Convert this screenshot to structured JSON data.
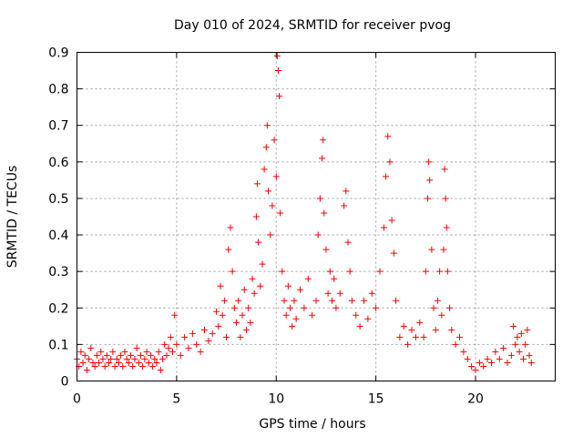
{
  "chart_data": {
    "type": "scatter",
    "title": "Day 010 of 2024, SRMTID for receiver pvog",
    "xlabel": "GPS time / hours",
    "ylabel": "SRMTID / TECUs",
    "xlim": [
      0,
      24
    ],
    "ylim": [
      0,
      0.9
    ],
    "xticks": [
      0,
      5,
      10,
      15,
      20
    ],
    "xtick_labels": [
      "0",
      "5",
      "10",
      "15",
      "20"
    ],
    "yticks": [
      0,
      0.1,
      0.2,
      0.3,
      0.4,
      0.5,
      0.6,
      0.7,
      0.8,
      0.9
    ],
    "ytick_labels": [
      "0",
      "0.1",
      "0.2",
      "0.3",
      "0.4",
      "0.5",
      "0.6",
      "0.7",
      "0.8",
      "0.9"
    ],
    "grid": true,
    "marker": "plus",
    "marker_color": "#ff0000",
    "series": [
      {
        "name": "SRMTID",
        "points": [
          [
            0.0,
            0.06
          ],
          [
            0.1,
            0.04
          ],
          [
            0.2,
            0.08
          ],
          [
            0.3,
            0.05
          ],
          [
            0.4,
            0.07
          ],
          [
            0.5,
            0.03
          ],
          [
            0.6,
            0.06
          ],
          [
            0.7,
            0.09
          ],
          [
            0.8,
            0.05
          ],
          [
            0.9,
            0.04
          ],
          [
            1.0,
            0.07
          ],
          [
            1.1,
            0.05
          ],
          [
            1.2,
            0.08
          ],
          [
            1.3,
            0.06
          ],
          [
            1.4,
            0.04
          ],
          [
            1.5,
            0.07
          ],
          [
            1.6,
            0.05
          ],
          [
            1.7,
            0.06
          ],
          [
            1.8,
            0.08
          ],
          [
            1.9,
            0.04
          ],
          [
            2.0,
            0.06
          ],
          [
            2.1,
            0.05
          ],
          [
            2.2,
            0.07
          ],
          [
            2.3,
            0.04
          ],
          [
            2.4,
            0.08
          ],
          [
            2.5,
            0.06
          ],
          [
            2.6,
            0.05
          ],
          [
            2.7,
            0.07
          ],
          [
            2.8,
            0.04
          ],
          [
            2.9,
            0.06
          ],
          [
            3.0,
            0.09
          ],
          [
            3.1,
            0.05
          ],
          [
            3.2,
            0.07
          ],
          [
            3.3,
            0.04
          ],
          [
            3.4,
            0.06
          ],
          [
            3.5,
            0.08
          ],
          [
            3.6,
            0.05
          ],
          [
            3.7,
            0.07
          ],
          [
            3.8,
            0.04
          ],
          [
            3.9,
            0.06
          ],
          [
            4.0,
            0.05
          ],
          [
            4.1,
            0.08
          ],
          [
            4.2,
            0.03
          ],
          [
            4.3,
            0.06
          ],
          [
            4.4,
            0.1
          ],
          [
            4.5,
            0.07
          ],
          [
            4.6,
            0.09
          ],
          [
            4.7,
            0.12
          ],
          [
            4.8,
            0.08
          ],
          [
            4.9,
            0.18
          ],
          [
            5.0,
            0.1
          ],
          [
            5.2,
            0.07
          ],
          [
            5.4,
            0.12
          ],
          [
            5.6,
            0.09
          ],
          [
            5.8,
            0.13
          ],
          [
            6.0,
            0.1
          ],
          [
            6.2,
            0.08
          ],
          [
            6.4,
            0.14
          ],
          [
            6.6,
            0.11
          ],
          [
            6.8,
            0.13
          ],
          [
            7.0,
            0.19
          ],
          [
            7.1,
            0.15
          ],
          [
            7.2,
            0.26
          ],
          [
            7.3,
            0.18
          ],
          [
            7.4,
            0.22
          ],
          [
            7.5,
            0.12
          ],
          [
            7.6,
            0.36
          ],
          [
            7.7,
            0.42
          ],
          [
            7.8,
            0.3
          ],
          [
            7.9,
            0.2
          ],
          [
            8.0,
            0.16
          ],
          [
            8.1,
            0.22
          ],
          [
            8.2,
            0.12
          ],
          [
            8.3,
            0.18
          ],
          [
            8.4,
            0.25
          ],
          [
            8.5,
            0.14
          ],
          [
            8.6,
            0.2
          ],
          [
            8.7,
            0.16
          ],
          [
            8.8,
            0.28
          ],
          [
            8.9,
            0.24
          ],
          [
            9.0,
            0.45
          ],
          [
            9.05,
            0.54
          ],
          [
            9.1,
            0.38
          ],
          [
            9.2,
            0.26
          ],
          [
            9.3,
            0.32
          ],
          [
            9.4,
            0.58
          ],
          [
            9.5,
            0.64
          ],
          [
            9.55,
            0.7
          ],
          [
            9.6,
            0.52
          ],
          [
            9.7,
            0.4
          ],
          [
            9.8,
            0.48
          ],
          [
            9.9,
            0.66
          ],
          [
            10.0,
            0.56
          ],
          [
            10.05,
            0.89
          ],
          [
            10.1,
            0.85
          ],
          [
            10.15,
            0.78
          ],
          [
            10.2,
            0.46
          ],
          [
            10.3,
            0.3
          ],
          [
            10.4,
            0.22
          ],
          [
            10.5,
            0.18
          ],
          [
            10.6,
            0.26
          ],
          [
            10.7,
            0.2
          ],
          [
            10.8,
            0.15
          ],
          [
            10.9,
            0.22
          ],
          [
            11.0,
            0.17
          ],
          [
            11.2,
            0.25
          ],
          [
            11.4,
            0.2
          ],
          [
            11.6,
            0.28
          ],
          [
            11.8,
            0.18
          ],
          [
            12.0,
            0.22
          ],
          [
            12.1,
            0.4
          ],
          [
            12.2,
            0.5
          ],
          [
            12.3,
            0.61
          ],
          [
            12.35,
            0.66
          ],
          [
            12.4,
            0.46
          ],
          [
            12.5,
            0.36
          ],
          [
            12.6,
            0.24
          ],
          [
            12.7,
            0.3
          ],
          [
            12.8,
            0.22
          ],
          [
            12.9,
            0.28
          ],
          [
            13.0,
            0.2
          ],
          [
            13.2,
            0.24
          ],
          [
            13.4,
            0.48
          ],
          [
            13.5,
            0.52
          ],
          [
            13.6,
            0.38
          ],
          [
            13.7,
            0.3
          ],
          [
            13.8,
            0.22
          ],
          [
            14.0,
            0.18
          ],
          [
            14.2,
            0.15
          ],
          [
            14.4,
            0.22
          ],
          [
            14.6,
            0.17
          ],
          [
            14.8,
            0.24
          ],
          [
            15.0,
            0.2
          ],
          [
            15.2,
            0.3
          ],
          [
            15.4,
            0.42
          ],
          [
            15.5,
            0.56
          ],
          [
            15.6,
            0.67
          ],
          [
            15.7,
            0.6
          ],
          [
            15.8,
            0.44
          ],
          [
            15.9,
            0.35
          ],
          [
            16.0,
            0.22
          ],
          [
            16.2,
            0.12
          ],
          [
            16.4,
            0.15
          ],
          [
            16.6,
            0.1
          ],
          [
            16.8,
            0.14
          ],
          [
            17.0,
            0.12
          ],
          [
            17.2,
            0.16
          ],
          [
            17.4,
            0.12
          ],
          [
            17.5,
            0.3
          ],
          [
            17.6,
            0.5
          ],
          [
            17.65,
            0.6
          ],
          [
            17.7,
            0.55
          ],
          [
            17.8,
            0.36
          ],
          [
            17.9,
            0.2
          ],
          [
            18.0,
            0.14
          ],
          [
            18.1,
            0.22
          ],
          [
            18.2,
            0.3
          ],
          [
            18.3,
            0.18
          ],
          [
            18.4,
            0.36
          ],
          [
            18.45,
            0.58
          ],
          [
            18.5,
            0.5
          ],
          [
            18.55,
            0.42
          ],
          [
            18.6,
            0.3
          ],
          [
            18.7,
            0.2
          ],
          [
            18.8,
            0.14
          ],
          [
            19.0,
            0.1
          ],
          [
            19.2,
            0.12
          ],
          [
            19.4,
            0.08
          ],
          [
            19.6,
            0.06
          ],
          [
            19.8,
            0.04
          ],
          [
            20.0,
            0.03
          ],
          [
            20.2,
            0.05
          ],
          [
            20.4,
            0.04
          ],
          [
            20.6,
            0.06
          ],
          [
            20.8,
            0.05
          ],
          [
            21.0,
            0.08
          ],
          [
            21.2,
            0.06
          ],
          [
            21.4,
            0.09
          ],
          [
            21.6,
            0.05
          ],
          [
            21.8,
            0.07
          ],
          [
            21.9,
            0.15
          ],
          [
            22.0,
            0.1
          ],
          [
            22.1,
            0.12
          ],
          [
            22.2,
            0.08
          ],
          [
            22.3,
            0.13
          ],
          [
            22.4,
            0.06
          ],
          [
            22.5,
            0.1
          ],
          [
            22.6,
            0.14
          ],
          [
            22.7,
            0.07
          ],
          [
            22.8,
            0.05
          ]
        ]
      }
    ]
  }
}
